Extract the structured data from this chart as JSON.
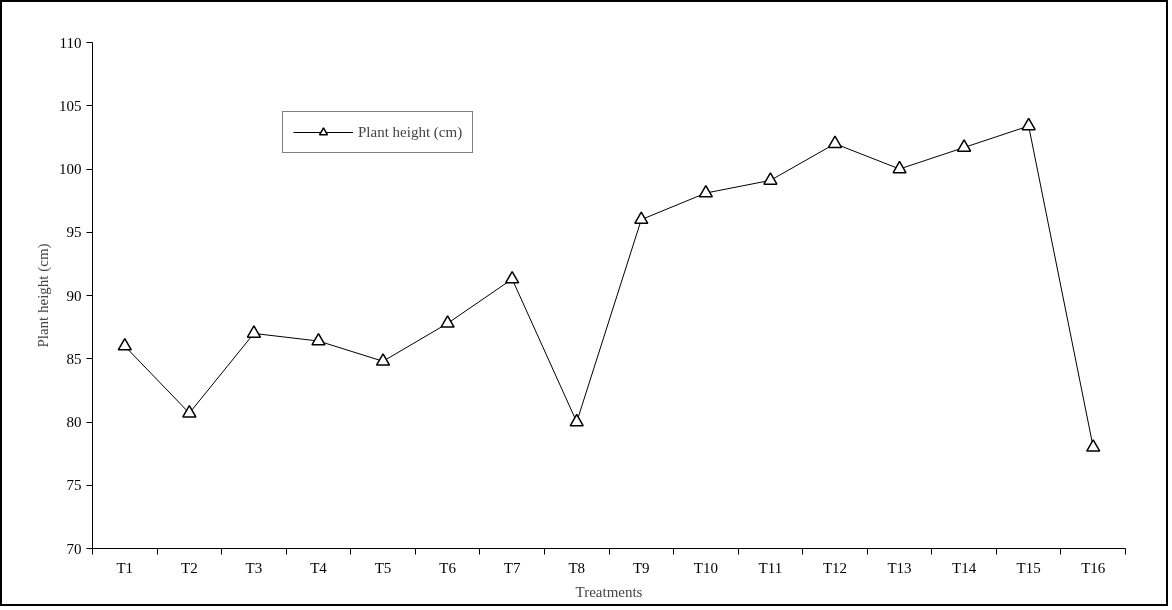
{
  "chart_data": {
    "type": "line",
    "xlabel": "Treatments",
    "ylabel": "Plant height (cm)",
    "categories": [
      "T1",
      "T2",
      "T3",
      "T4",
      "T5",
      "T6",
      "T7",
      "T8",
      "T9",
      "T10",
      "T11",
      "T12",
      "T13",
      "T14",
      "T15",
      "T16"
    ],
    "series": [
      {
        "name": "Plant height (cm)",
        "color": "#000000",
        "values": [
          86,
          80.7,
          87,
          86.4,
          84.8,
          87.8,
          91.3,
          80,
          96,
          98.1,
          99.1,
          102,
          100,
          101.7,
          103.4,
          78
        ]
      }
    ],
    "ylim": [
      70,
      110
    ],
    "yticks": [
      70,
      75,
      80,
      85,
      90,
      95,
      100,
      105,
      110
    ],
    "grid": false,
    "legend": "top",
    "marker": "triangle",
    "line_style": "solid"
  }
}
